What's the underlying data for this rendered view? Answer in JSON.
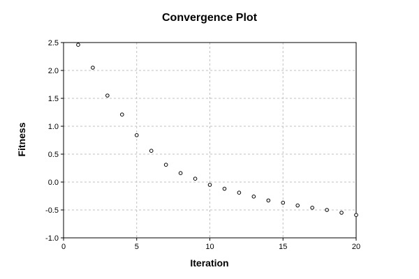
{
  "chart_data": {
    "type": "scatter",
    "title": "Convergence Plot",
    "xlabel": "Iteration",
    "ylabel": "Fitness",
    "xlim": [
      0,
      20
    ],
    "ylim": [
      -1.0,
      2.5
    ],
    "x_ticks": [
      "0",
      "5",
      "10",
      "15",
      "20"
    ],
    "y_ticks": [
      "2.5",
      "2.0",
      "1.5",
      "1.0",
      "0.5",
      "0.0",
      "-0.5",
      "-1.0"
    ],
    "grid": true,
    "legend": "none",
    "marker": "open-circle",
    "colors": {
      "marker": "#000000",
      "grid": "#c0c0c0",
      "axis": "#000000",
      "background": "#ffffff"
    },
    "series": [
      {
        "x": [
          1,
          2,
          3,
          4,
          5,
          6,
          7,
          8,
          9,
          10,
          11,
          12,
          13,
          14,
          15,
          16,
          17,
          18,
          19,
          20
        ],
        "y": [
          2.46,
          2.05,
          1.55,
          1.21,
          0.84,
          0.56,
          0.31,
          0.16,
          0.06,
          -0.05,
          -0.12,
          -0.19,
          -0.26,
          -0.33,
          -0.37,
          -0.42,
          -0.46,
          -0.5,
          -0.55,
          -0.59
        ]
      }
    ]
  }
}
